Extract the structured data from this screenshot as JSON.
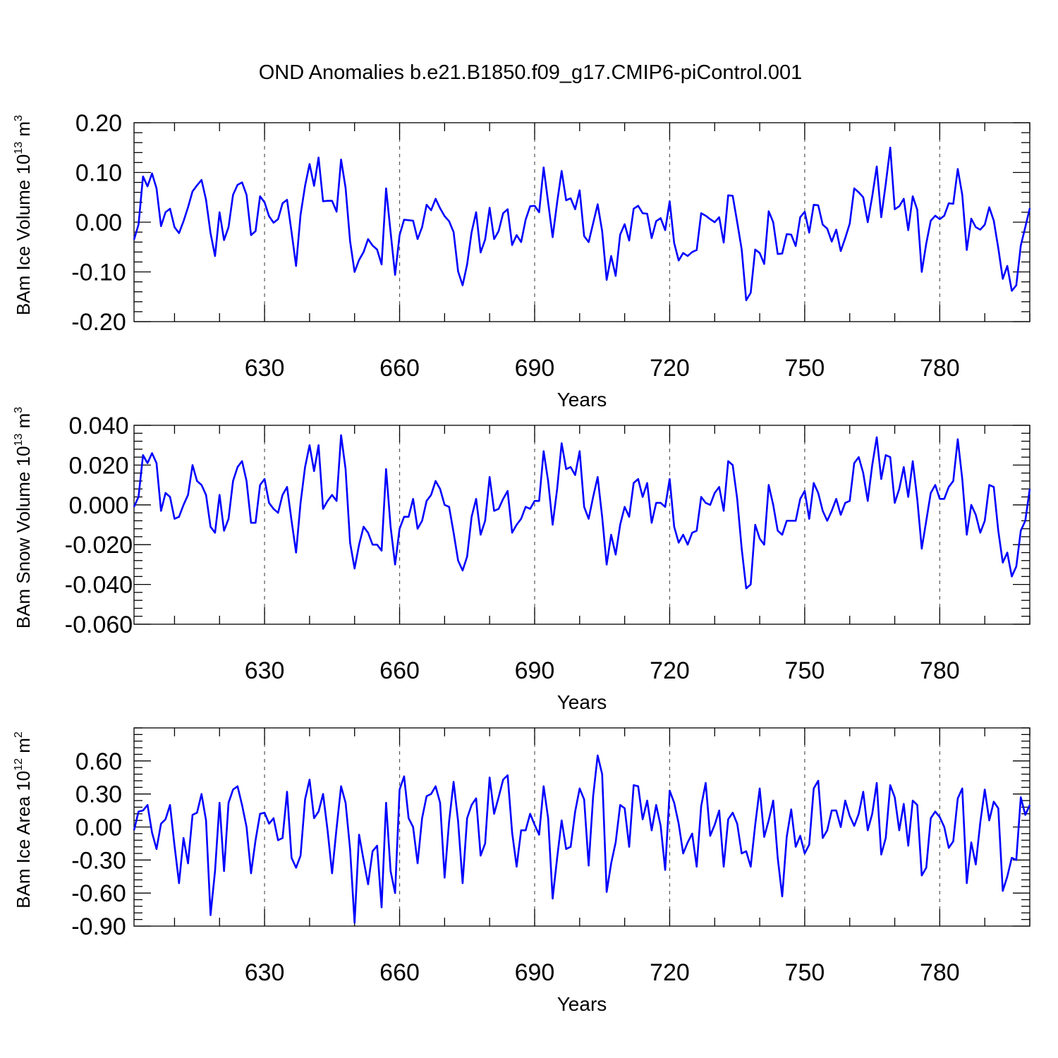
{
  "chart_data": {
    "title": "OND Anomalies b.e21.B1850.f09_g17.CMIP6-piControl.001",
    "type": "line",
    "series_color": "#0000ff",
    "years": [
      601,
      602,
      603,
      604,
      605,
      606,
      607,
      608,
      609,
      610,
      611,
      612,
      613,
      614,
      615,
      616,
      617,
      618,
      619,
      620,
      621,
      622,
      623,
      624,
      625,
      626,
      627,
      628,
      629,
      630,
      631,
      632,
      633,
      634,
      635,
      636,
      637,
      638,
      639,
      640,
      641,
      642,
      643,
      644,
      645,
      646,
      647,
      648,
      649,
      650,
      651,
      652,
      653,
      654,
      655,
      656,
      657,
      658,
      659,
      660,
      661,
      662,
      663,
      664,
      665,
      666,
      667,
      668,
      669,
      670,
      671,
      672,
      673,
      674,
      675,
      676,
      677,
      678,
      679,
      680,
      681,
      682,
      683,
      684,
      685,
      686,
      687,
      688,
      689,
      690,
      691,
      692,
      693,
      694,
      695,
      696,
      697,
      698,
      699,
      700,
      701,
      702,
      703,
      704,
      705,
      706,
      707,
      708,
      709,
      710,
      711,
      712,
      713,
      714,
      715,
      716,
      717,
      718,
      719,
      720,
      721,
      722,
      723,
      724,
      725,
      726,
      727,
      728,
      729,
      730,
      731,
      732,
      733,
      734,
      735,
      736,
      737,
      738,
      739,
      740,
      741,
      742,
      743,
      744,
      745,
      746,
      747,
      748,
      749,
      750,
      751,
      752,
      753,
      754,
      755,
      756,
      757,
      758,
      759,
      760,
      761,
      762,
      763,
      764,
      765,
      766,
      767,
      768,
      769,
      770,
      771,
      772,
      773,
      774,
      775,
      776,
      777,
      778,
      779,
      780,
      781,
      782,
      783,
      784,
      785,
      786,
      787,
      788,
      789,
      790,
      791,
      792,
      793,
      794,
      795,
      796,
      797,
      798,
      799,
      800
    ],
    "xlim": [
      601,
      800
    ],
    "xticks": [
      630,
      660,
      690,
      720,
      750,
      780
    ],
    "x_grid": "dashed vertical lines at labeled ticks",
    "panels": [
      {
        "id": "ice-volume",
        "ylabel": "BAm Ice Volume 10",
        "ylabel_exp": "13",
        "ylabel_unit": " m",
        "ylabel_unit_exp": "3",
        "xlabel": "Years",
        "ylim": [
          -0.2,
          0.2
        ],
        "yticks": [
          0.2,
          0.1,
          0.0,
          -0.1,
          -0.2
        ],
        "ytick_labels": [
          "0.20",
          "0.10",
          "0.00",
          "-0.10",
          "-0.20"
        ],
        "xtick_labels": [
          "630",
          "660",
          "690",
          "720",
          "750",
          "780"
        ],
        "values": [
          -0.035,
          -0.005,
          0.092,
          0.072,
          0.098,
          0.068,
          -0.008,
          0.02,
          0.027,
          -0.01,
          -0.022,
          0.002,
          0.03,
          0.062,
          0.074,
          0.085,
          0.045,
          -0.022,
          -0.068,
          0.02,
          -0.036,
          -0.01,
          0.055,
          0.075,
          0.08,
          0.055,
          -0.026,
          -0.018,
          0.052,
          0.04,
          0.012,
          -0.001,
          0.006,
          0.038,
          0.045,
          -0.02,
          -0.088,
          0.015,
          0.073,
          0.117,
          0.073,
          0.13,
          0.042,
          0.043,
          0.043,
          0.021,
          0.126,
          0.069,
          -0.038,
          -0.1,
          -0.076,
          -0.06,
          -0.034,
          -0.047,
          -0.055,
          -0.085,
          0.068,
          -0.02,
          -0.106,
          -0.026,
          0.005,
          0.004,
          0.003,
          -0.034,
          -0.01,
          0.035,
          0.024,
          0.047,
          0.028,
          0.012,
          0.002,
          -0.02,
          -0.099,
          -0.127,
          -0.085,
          -0.02,
          0.02,
          -0.061,
          -0.035,
          0.029,
          -0.034,
          -0.018,
          0.018,
          0.026,
          -0.046,
          -0.026,
          -0.04,
          0.005,
          0.032,
          0.033,
          0.02,
          0.11,
          0.04,
          -0.03,
          0.04,
          0.103,
          0.044,
          0.048,
          0.026,
          0.064,
          -0.028,
          -0.04,
          -0.002,
          0.036,
          -0.018,
          -0.116,
          -0.068,
          -0.108,
          -0.025,
          -0.004,
          -0.037,
          0.027,
          0.033,
          0.018,
          0.017,
          -0.032,
          0.002,
          0.008,
          -0.016,
          0.042,
          -0.042,
          -0.077,
          -0.062,
          -0.068,
          -0.06,
          -0.056,
          0.018,
          0.013,
          0.006,
          0.0,
          0.01,
          -0.041,
          0.054,
          0.053,
          0.0,
          -0.055,
          -0.157,
          -0.142,
          -0.055,
          -0.062,
          -0.084,
          0.022,
          0.0,
          -0.064,
          -0.063,
          -0.024,
          -0.025,
          -0.048,
          0.01,
          0.021,
          -0.021,
          0.035,
          0.034,
          -0.005,
          -0.013,
          -0.039,
          -0.015,
          -0.058,
          -0.032,
          -0.003,
          0.068,
          0.06,
          0.05,
          0.0,
          0.052,
          0.112,
          0.01,
          0.077,
          0.15,
          0.026,
          0.032,
          0.047,
          -0.016,
          0.052,
          0.025,
          -0.1,
          -0.043,
          0.003,
          0.013,
          0.006,
          0.013,
          0.038,
          0.037,
          0.107,
          0.055,
          -0.056,
          0.007,
          -0.01,
          -0.015,
          -0.005,
          0.03,
          0.003,
          -0.052,
          -0.114,
          -0.088,
          -0.138,
          -0.127,
          -0.047,
          -0.01,
          0.028
        ]
      },
      {
        "id": "snow-volume",
        "ylabel": "BAm Snow Volume 10",
        "ylabel_exp": "13",
        "ylabel_unit": " m",
        "ylabel_unit_exp": "3",
        "xlabel": "Years",
        "ylim": [
          -0.06,
          0.04
        ],
        "yticks": [
          0.04,
          0.02,
          0.0,
          -0.02,
          -0.04,
          -0.06
        ],
        "ytick_labels": [
          "0.040",
          "0.020",
          "0.000",
          "-0.020",
          "-0.040",
          "-0.060"
        ],
        "xtick_labels": [
          "630",
          "660",
          "690",
          "720",
          "750",
          "780"
        ],
        "values": [
          -0.001,
          0.004,
          0.025,
          0.021,
          0.026,
          0.021,
          -0.003,
          0.006,
          0.004,
          -0.007,
          -0.006,
          0.0,
          0.005,
          0.02,
          0.012,
          0.01,
          0.005,
          -0.011,
          -0.014,
          0.005,
          -0.013,
          -0.007,
          0.012,
          0.019,
          0.022,
          0.012,
          -0.009,
          -0.009,
          0.01,
          0.013,
          0.001,
          -0.002,
          -0.004,
          0.005,
          0.009,
          -0.008,
          -0.024,
          0.001,
          0.019,
          0.03,
          0.017,
          0.03,
          -0.002,
          0.002,
          0.005,
          0.002,
          0.035,
          0.018,
          -0.019,
          -0.032,
          -0.02,
          -0.011,
          -0.014,
          -0.02,
          -0.02,
          -0.023,
          0.018,
          -0.011,
          -0.03,
          -0.012,
          -0.006,
          -0.006,
          0.003,
          -0.012,
          -0.008,
          0.002,
          0.005,
          0.012,
          0.008,
          0.0,
          -0.001,
          -0.014,
          -0.028,
          -0.033,
          -0.026,
          -0.006,
          0.003,
          -0.015,
          -0.008,
          0.014,
          -0.003,
          -0.002,
          0.003,
          0.007,
          -0.014,
          -0.01,
          -0.007,
          -0.001,
          -0.002,
          0.002,
          0.002,
          0.027,
          0.012,
          -0.01,
          0.008,
          0.031,
          0.018,
          0.019,
          0.015,
          0.027,
          -0.001,
          -0.007,
          0.004,
          0.014,
          -0.006,
          -0.03,
          -0.015,
          -0.025,
          -0.01,
          -0.001,
          -0.006,
          0.011,
          0.013,
          0.004,
          0.011,
          -0.009,
          0.001,
          0.001,
          -0.001,
          0.013,
          -0.011,
          -0.019,
          -0.015,
          -0.02,
          -0.014,
          -0.013,
          0.004,
          0.001,
          0.0,
          0.006,
          0.009,
          -0.003,
          0.022,
          0.02,
          0.003,
          -0.022,
          -0.042,
          -0.04,
          -0.01,
          -0.017,
          -0.02,
          0.01,
          0.0,
          -0.013,
          -0.015,
          -0.008,
          -0.008,
          -0.008,
          0.003,
          0.007,
          -0.007,
          0.011,
          0.006,
          -0.003,
          -0.008,
          -0.003,
          0.003,
          -0.005,
          0.001,
          0.002,
          0.021,
          0.024,
          0.016,
          0.002,
          0.02,
          0.034,
          0.013,
          0.025,
          0.024,
          0.001,
          0.008,
          0.019,
          0.004,
          0.022,
          0.003,
          -0.022,
          -0.008,
          0.006,
          0.01,
          0.003,
          0.003,
          0.009,
          0.012,
          0.033,
          0.013,
          -0.015,
          0.0,
          -0.005,
          -0.014,
          -0.008,
          0.01,
          0.009,
          -0.013,
          -0.029,
          -0.024,
          -0.036,
          -0.031,
          -0.013,
          -0.008,
          0.008
        ]
      },
      {
        "id": "ice-area",
        "ylabel": "BAm Ice Area 10",
        "ylabel_exp": "12",
        "ylabel_unit": " m",
        "ylabel_unit_exp": "2",
        "xlabel": "Years",
        "ylim": [
          -0.9,
          0.9
        ],
        "yticks": [
          0.6,
          0.3,
          0.0,
          -0.3,
          -0.6,
          -0.9
        ],
        "ytick_labels": [
          "0.60",
          "0.30",
          "0.00",
          "-0.30",
          "-0.60",
          "-0.90"
        ],
        "xtick_labels": [
          "630",
          "660",
          "690",
          "720",
          "750",
          "780"
        ],
        "values": [
          -0.03,
          0.14,
          0.15,
          0.2,
          -0.05,
          -0.2,
          0.03,
          0.07,
          0.2,
          -0.17,
          -0.51,
          -0.1,
          -0.33,
          0.11,
          0.13,
          0.3,
          0.06,
          -0.8,
          -0.4,
          0.22,
          -0.4,
          0.22,
          0.34,
          0.37,
          0.2,
          0.0,
          -0.42,
          -0.12,
          0.12,
          0.13,
          0.03,
          0.08,
          -0.12,
          -0.1,
          0.32,
          -0.28,
          -0.37,
          -0.26,
          0.25,
          0.43,
          0.08,
          0.14,
          0.3,
          -0.03,
          -0.42,
          -0.01,
          0.37,
          0.22,
          -0.2,
          -0.87,
          -0.07,
          -0.3,
          -0.52,
          -0.22,
          -0.17,
          -0.73,
          0.22,
          -0.4,
          -0.6,
          0.34,
          0.46,
          0.08,
          0.0,
          -0.33,
          0.08,
          0.28,
          0.3,
          0.37,
          0.22,
          -0.46,
          0.05,
          0.41,
          0.05,
          -0.51,
          0.08,
          0.2,
          0.26,
          -0.26,
          -0.15,
          0.45,
          0.12,
          0.27,
          0.43,
          0.47,
          -0.05,
          -0.36,
          -0.03,
          -0.03,
          0.12,
          0.02,
          -0.07,
          0.37,
          0.08,
          -0.65,
          -0.28,
          0.06,
          -0.2,
          -0.18,
          0.14,
          0.35,
          0.25,
          -0.35,
          0.28,
          0.65,
          0.48,
          -0.59,
          -0.33,
          -0.14,
          0.2,
          0.17,
          -0.18,
          0.38,
          0.37,
          0.07,
          0.24,
          -0.03,
          0.2,
          0.01,
          -0.39,
          0.33,
          0.22,
          0.03,
          -0.24,
          -0.14,
          -0.06,
          -0.36,
          0.19,
          0.4,
          -0.08,
          0.02,
          0.15,
          -0.36,
          0.07,
          0.13,
          0.03,
          -0.24,
          -0.22,
          -0.36,
          0.02,
          0.35,
          -0.09,
          0.06,
          0.24,
          -0.28,
          -0.63,
          -0.09,
          0.16,
          -0.18,
          -0.08,
          -0.24,
          -0.16,
          0.35,
          0.42,
          -0.1,
          -0.03,
          0.15,
          0.15,
          0.0,
          0.24,
          0.1,
          0.01,
          0.12,
          0.32,
          -0.03,
          0.12,
          0.4,
          -0.25,
          -0.1,
          0.38,
          0.27,
          -0.03,
          0.21,
          -0.17,
          0.24,
          0.2,
          -0.44,
          -0.37,
          0.08,
          0.14,
          0.09,
          0.0,
          -0.19,
          -0.13,
          0.26,
          0.35,
          -0.51,
          -0.14,
          -0.34,
          0.04,
          0.34,
          0.06,
          0.23,
          0.17,
          -0.58,
          -0.45,
          -0.28,
          -0.3,
          0.27,
          0.11,
          0.2
        ]
      }
    ]
  }
}
